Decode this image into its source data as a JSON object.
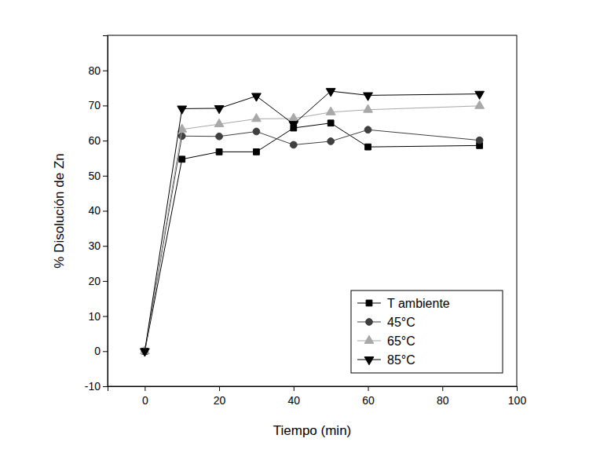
{
  "chart_data": {
    "type": "line",
    "x_label": "Tiempo (min)",
    "y_label": "% Disolución de Zn",
    "x": [
      0,
      10,
      20,
      30,
      40,
      50,
      60,
      90
    ],
    "series": [
      {
        "name": "T ambiente",
        "color": "#000000",
        "marker": "square",
        "values": [
          0,
          54.7,
          56.8,
          56.8,
          63.6,
          65.0,
          58.2,
          58.6
        ]
      },
      {
        "name": "45°C",
        "color": "#404040",
        "marker": "circle",
        "values": [
          0,
          61.3,
          61.2,
          62.6,
          58.8,
          59.8,
          63.1,
          60.1
        ]
      },
      {
        "name": "65°C",
        "color": "#a8a8a8",
        "marker": "triangle-up",
        "values": [
          0,
          63.2,
          64.7,
          66.2,
          66.3,
          68.1,
          68.8,
          69.9
        ]
      },
      {
        "name": "85°C",
        "color": "#000000",
        "marker": "triangle-down",
        "values": [
          0,
          69.1,
          69.2,
          72.7,
          64.7,
          74.1,
          72.9,
          73.3
        ]
      }
    ],
    "xlim": [
      -10,
      100
    ],
    "xticks": [
      0,
      20,
      40,
      60,
      80,
      100
    ],
    "ylim": [
      -10,
      90
    ],
    "yticks": [
      -10,
      0,
      10,
      20,
      30,
      40,
      50,
      60,
      70,
      80
    ],
    "legend": "bottom-right"
  }
}
